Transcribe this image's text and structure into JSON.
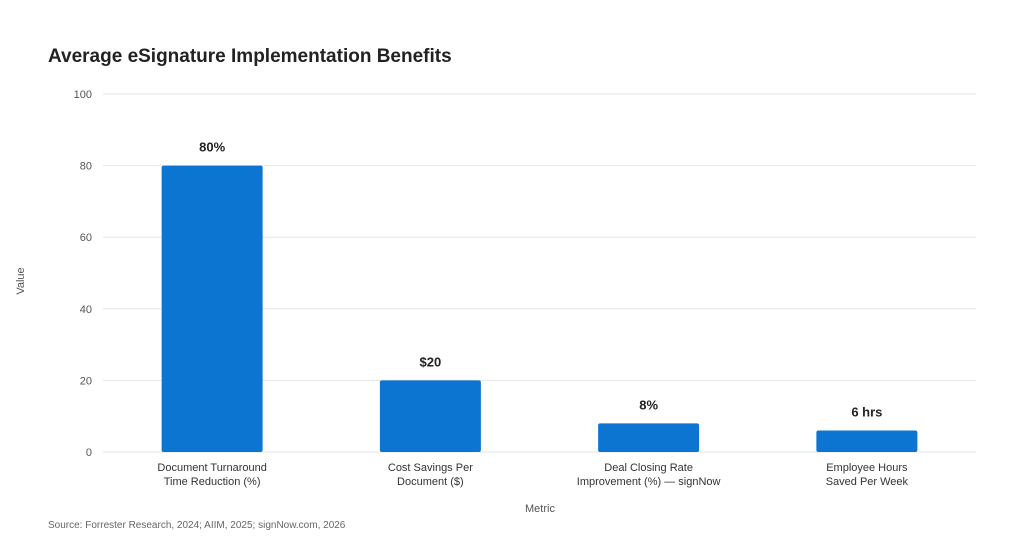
{
  "chart_data": {
    "type": "bar",
    "title": "Average eSignature Implementation Benefits",
    "xlabel": "Metric",
    "ylabel": "Value",
    "ylim": [
      0,
      100
    ],
    "yticks": [
      0,
      20,
      40,
      60,
      80,
      100
    ],
    "grid": true,
    "bar_color": "#0b75d1",
    "categories": [
      [
        "Document Turnaround",
        "Time Reduction (%)"
      ],
      [
        "Cost Savings Per",
        "Document ($)"
      ],
      [
        "Deal Closing Rate",
        "Improvement (%) — signNow"
      ],
      [
        "Employee Hours",
        "Saved Per Week"
      ]
    ],
    "values": [
      80,
      20,
      8,
      6
    ],
    "data_labels": [
      "80%",
      "$20",
      "8%",
      "6 hrs"
    ],
    "source": "Source: Forrester Research, 2024; AIIM, 2025; signNow.com, 2026"
  }
}
